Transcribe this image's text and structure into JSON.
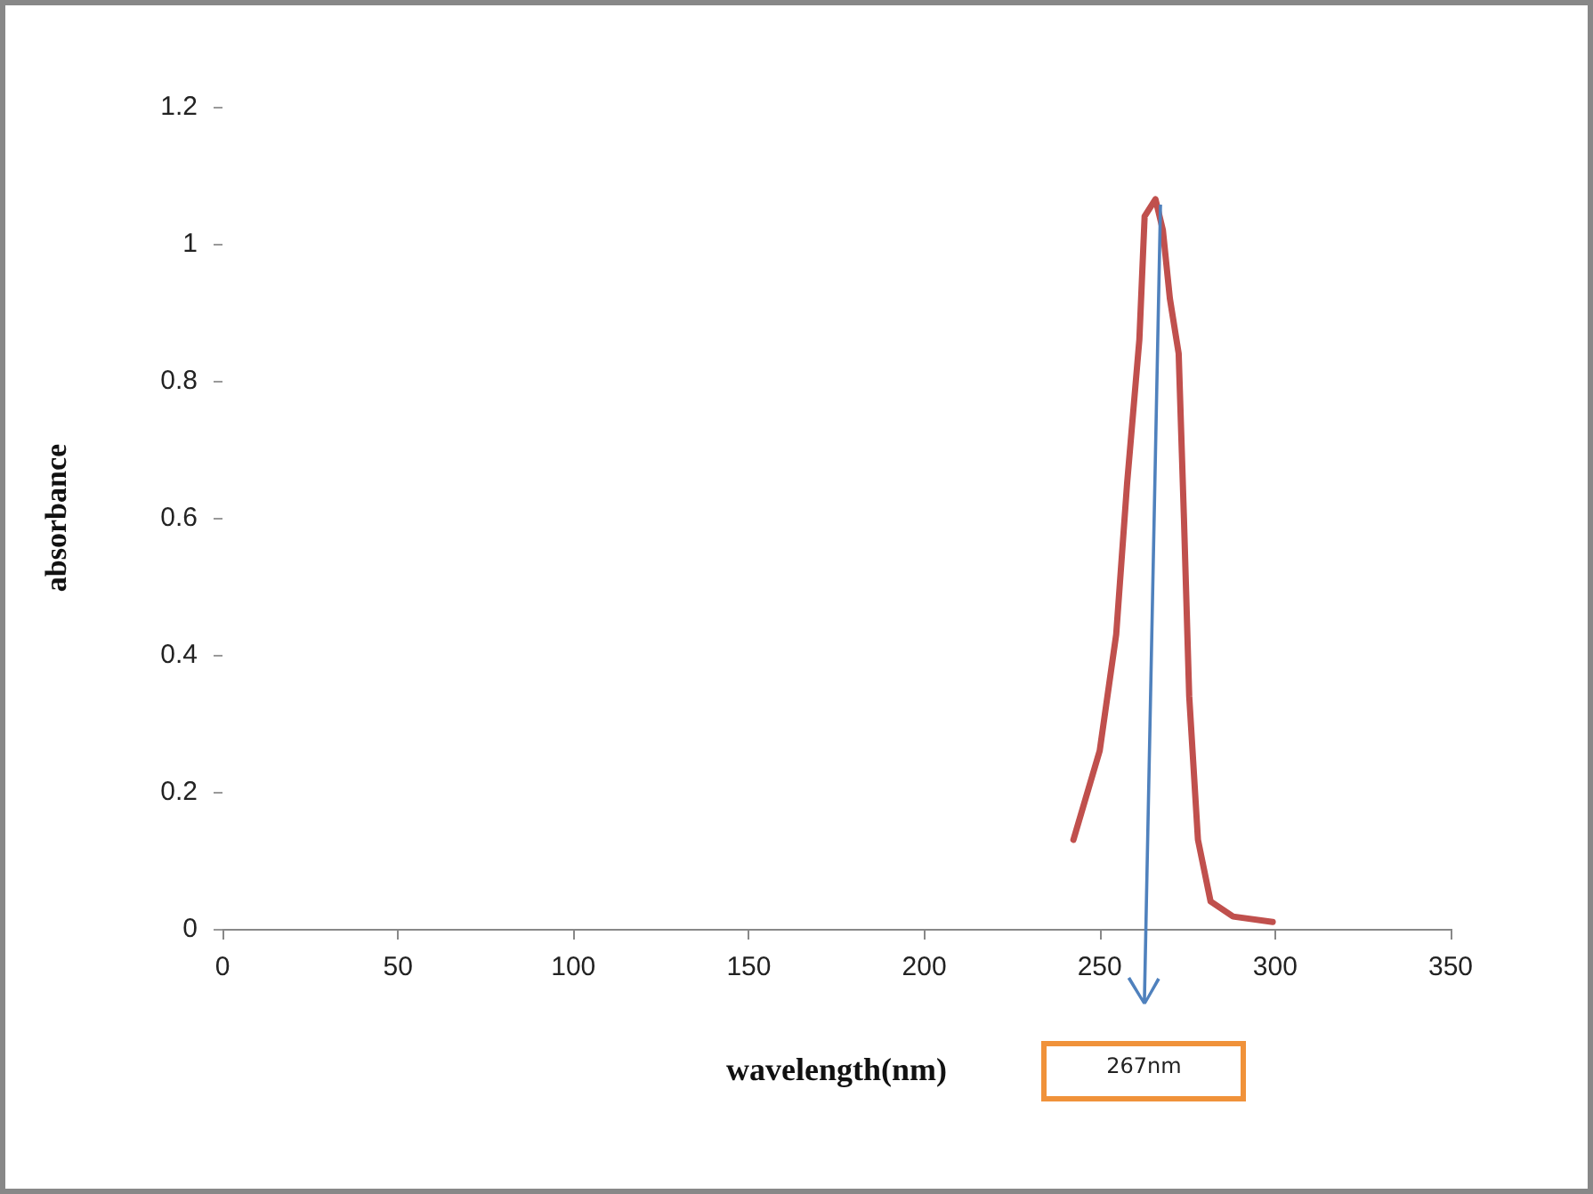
{
  "chart_data": {
    "type": "line",
    "xlabel": "wavelength(nm)",
    "ylabel": "absorbance",
    "series": [
      {
        "color": "#c0504d",
        "x": [
          242.5,
          250,
          254.7,
          257.8,
          261.3,
          262.8,
          265.9,
          268,
          270,
          272.5,
          274,
          275.5,
          278,
          281.6,
          288,
          299.3
        ],
        "values": [
          0.13,
          0.26,
          0.43,
          0.65,
          0.86,
          1.04,
          1.065,
          1.02,
          0.92,
          0.84,
          0.6,
          0.34,
          0.13,
          0.04,
          0.018,
          0.01
        ]
      }
    ],
    "xlim": [
      0,
      350
    ],
    "xticks": [
      0,
      50,
      100,
      150,
      200,
      250,
      300,
      350
    ],
    "ylim": [
      0,
      1.2
    ],
    "yticks": [
      0,
      0.2,
      0.4,
      0.6,
      0.8,
      1,
      1.2
    ],
    "marker": "none",
    "line_style": "solid",
    "annotations": [
      "267nm"
    ]
  }
}
